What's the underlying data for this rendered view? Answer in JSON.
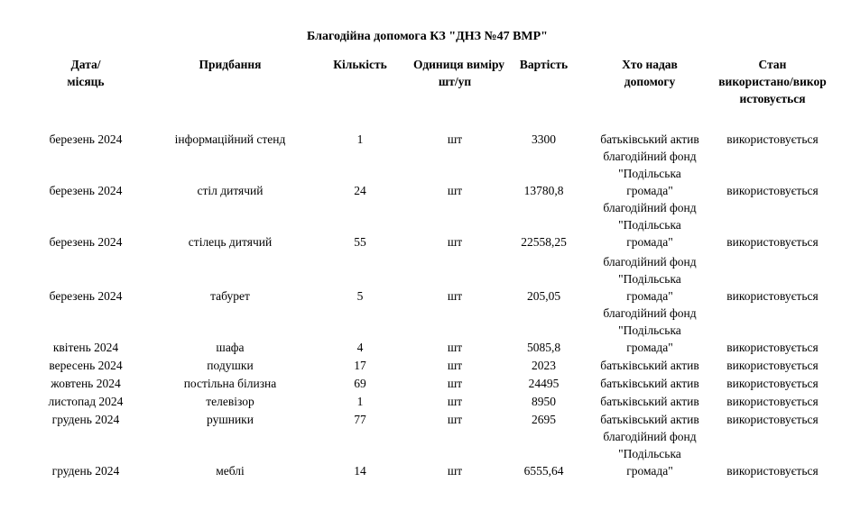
{
  "title": "Благодійна допомога КЗ \"ДНЗ №47 ВМР\"",
  "table": {
    "headers": [
      "Дата/\nмісяць",
      "Придбання",
      "Кількість",
      "Одиниця виміру\nшт/уп",
      "Вартість",
      "Хто надав\nдопомогу",
      "Стан\nвикористано/викор\nистовується"
    ],
    "rows": [
      {
        "date": "березень 2024",
        "item": "інформаційний стенд",
        "qty": "1",
        "unit": "шт",
        "cost": "3300",
        "donor": "батьківський актив",
        "status": "використовується"
      },
      {
        "date": "березень 2024",
        "item": "стіл дитячий",
        "qty": "24",
        "unit": "шт",
        "cost": "13780,8",
        "donor": "благодійний фонд\n\"Подільська\nгромада\"",
        "status": "використовується"
      },
      {
        "date": "березень 2024",
        "item": "стілець дитячий",
        "qty": "55",
        "unit": "шт",
        "cost": "22558,25",
        "donor": "благодійний фонд\n\"Подільська\nгромада\"",
        "status": "використовується"
      },
      {
        "date": "березень 2024",
        "item": "табурет",
        "qty": "5",
        "unit": "шт",
        "cost": "205,05",
        "donor": "благодійний фонд\n\"Подільська\nгромада\"",
        "status": "використовується"
      },
      {
        "date": "квітень 2024",
        "item": "шафа",
        "qty": "4",
        "unit": "шт",
        "cost": "5085,8",
        "donor": "благодійний фонд\n\"Подільська\nгромада\"",
        "status": "використовується"
      },
      {
        "date": "вересень 2024",
        "item": "подушки",
        "qty": "17",
        "unit": "шт",
        "cost": "2023",
        "donor": "батьківський актив",
        "status": "використовується"
      },
      {
        "date": "жовтень 2024",
        "item": "постільна білизна",
        "qty": "69",
        "unit": "шт",
        "cost": "24495",
        "donor": "батьківський актив",
        "status": "використовується"
      },
      {
        "date": "листопад 2024",
        "item": "телевізор",
        "qty": "1",
        "unit": "шт",
        "cost": "8950",
        "donor": "батьківський актив",
        "status": "використовується"
      },
      {
        "date": "грудень 2024",
        "item": "рушники",
        "qty": "77",
        "unit": "шт",
        "cost": "2695",
        "donor": "батьківський актив",
        "status": "використовується"
      },
      {
        "date": "грудень 2024",
        "item": "меблі",
        "qty": "14",
        "unit": "шт",
        "cost": "6555,64",
        "donor": "благодійний фонд\n\"Подільська\nгромада\"",
        "status": "використовується"
      }
    ]
  }
}
